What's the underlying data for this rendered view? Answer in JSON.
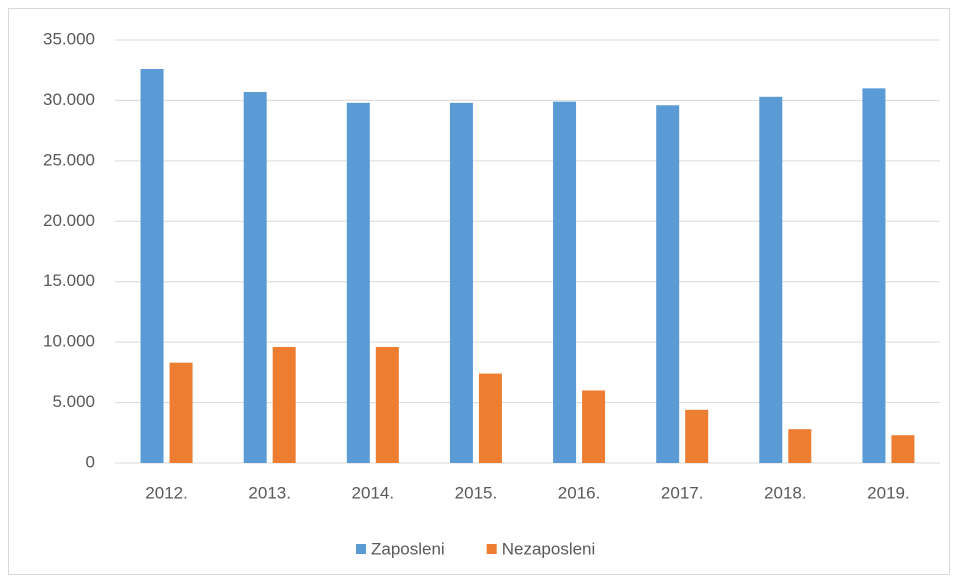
{
  "chart_data": {
    "type": "bar",
    "categories": [
      "2012.",
      "2013.",
      "2014.",
      "2015.",
      "2016.",
      "2017.",
      "2018.",
      "2019."
    ],
    "series": [
      {
        "name": "Zaposleni",
        "color": "#5b9bd5",
        "values": [
          32600,
          30700,
          29800,
          29800,
          29900,
          29600,
          30300,
          31000
        ]
      },
      {
        "name": "Nezaposleni",
        "color": "#ed7d31",
        "values": [
          8300,
          9600,
          9600,
          7400,
          6000,
          4400,
          2800,
          2300
        ]
      }
    ],
    "ylim": [
      0,
      35000
    ],
    "yticks": [
      0,
      {
        "value": 5000,
        "label": "5.000"
      },
      {
        "value": 10000,
        "label": "10.000"
      },
      {
        "value": 15000,
        "label": "15.000"
      },
      {
        "value": 20000,
        "label": "20.000"
      },
      {
        "value": 25000,
        "label": "25.000"
      },
      {
        "value": 30000,
        "label": "30.000"
      },
      {
        "value": 35000,
        "label": "35.000"
      }
    ],
    "grid": true,
    "legend": "bottom"
  }
}
